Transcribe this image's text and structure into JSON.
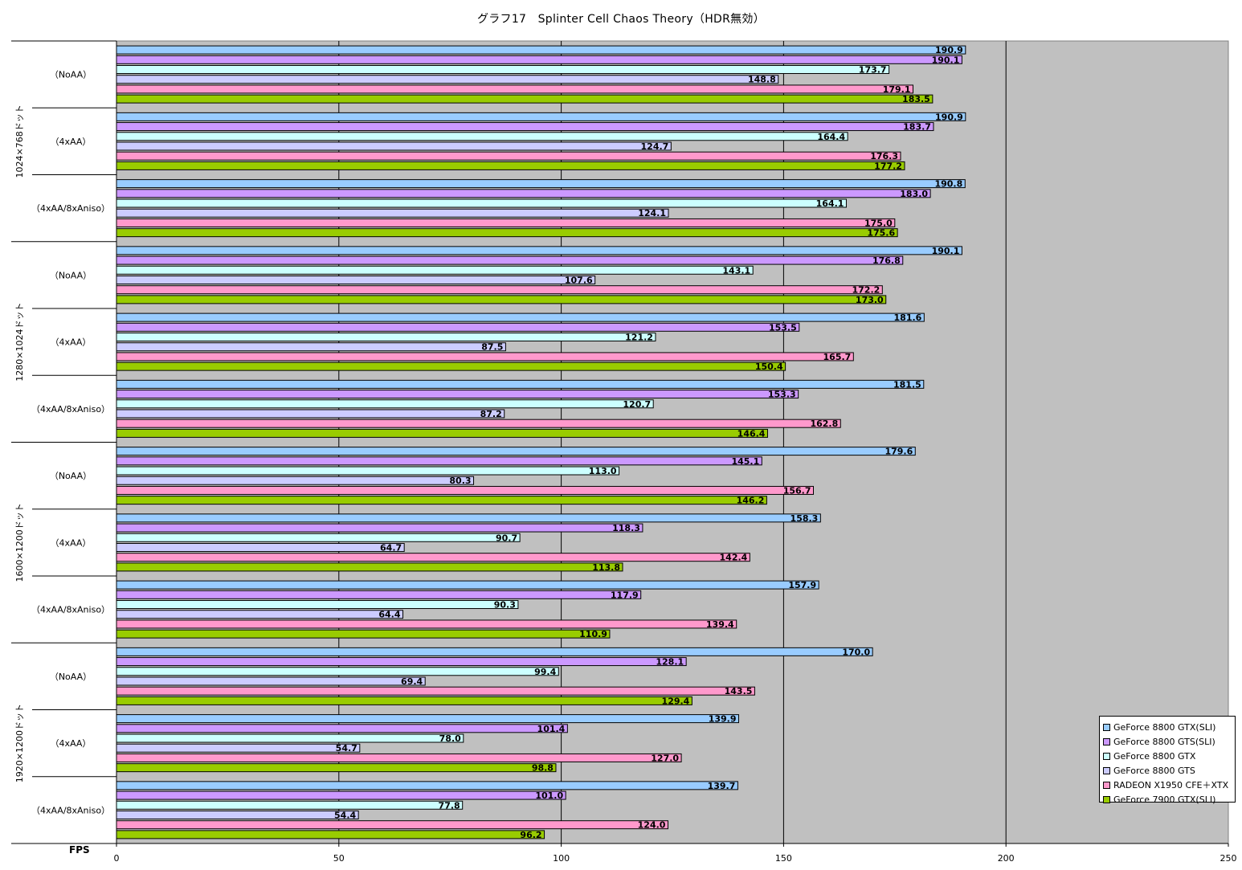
{
  "chart_data": {
    "type": "bar",
    "orientation": "horizontal",
    "title": "グラフ17　Splinter Cell Chaos Theory（HDR無効）",
    "xlabel": "FPS",
    "xlim": [
      0,
      250
    ],
    "xticks": [
      0,
      50,
      100,
      150,
      200,
      250
    ],
    "grid": true,
    "legend_position": "bottom-right",
    "plot_background": "#c0c0c0",
    "series": [
      {
        "name": "GeForce 8800 GTX(SLI)",
        "color": "#99ccff"
      },
      {
        "name": "GeForce 8800 GTS(SLI)",
        "color": "#cc99ff"
      },
      {
        "name": "GeForce 8800 GTX",
        "color": "#ccffff"
      },
      {
        "name": "GeForce 8800 GTS",
        "color": "#ccccff"
      },
      {
        "name": "RADEON X1950 CFE＋XTX",
        "color": "#ff99cc"
      },
      {
        "name": "GeForce 7900 GTX(SLI)",
        "color": "#99cc00"
      }
    ],
    "groups": [
      {
        "resolution": "1024×768ドット",
        "settings": [
          {
            "label": "（NoAA）",
            "values": [
              190.9,
              190.1,
              173.7,
              148.8,
              179.1,
              183.5
            ]
          },
          {
            "label": "（4xAA）",
            "values": [
              190.9,
              183.7,
              164.4,
              124.7,
              176.3,
              177.2
            ]
          },
          {
            "label": "（4xAA/8xAniso）",
            "values": [
              190.8,
              183.0,
              164.1,
              124.1,
              175.0,
              175.6
            ]
          }
        ]
      },
      {
        "resolution": "1280×1024ドット",
        "settings": [
          {
            "label": "（NoAA）",
            "values": [
              190.1,
              176.8,
              143.1,
              107.6,
              172.2,
              173.0
            ]
          },
          {
            "label": "（4xAA）",
            "values": [
              181.6,
              153.5,
              121.2,
              87.5,
              165.7,
              150.4
            ]
          },
          {
            "label": "（4xAA/8xAniso）",
            "values": [
              181.5,
              153.3,
              120.7,
              87.2,
              162.8,
              146.4
            ]
          }
        ]
      },
      {
        "resolution": "1600×1200ドット",
        "settings": [
          {
            "label": "（NoAA）",
            "values": [
              179.6,
              145.1,
              113.0,
              80.3,
              156.7,
              146.2
            ]
          },
          {
            "label": "（4xAA）",
            "values": [
              158.3,
              118.3,
              90.7,
              64.7,
              142.4,
              113.8
            ]
          },
          {
            "label": "（4xAA/8xAniso）",
            "values": [
              157.9,
              117.9,
              90.3,
              64.4,
              139.4,
              110.9
            ]
          }
        ]
      },
      {
        "resolution": "1920×1200ドット",
        "settings": [
          {
            "label": "（NoAA）",
            "values": [
              170.0,
              128.1,
              99.4,
              69.4,
              143.5,
              129.4
            ]
          },
          {
            "label": "（4xAA）",
            "values": [
              139.9,
              101.4,
              78.0,
              54.7,
              127.0,
              98.8
            ]
          },
          {
            "label": "（4xAA/8xAniso）",
            "values": [
              139.7,
              101.0,
              77.8,
              54.4,
              124.0,
              96.2
            ]
          }
        ]
      }
    ]
  }
}
